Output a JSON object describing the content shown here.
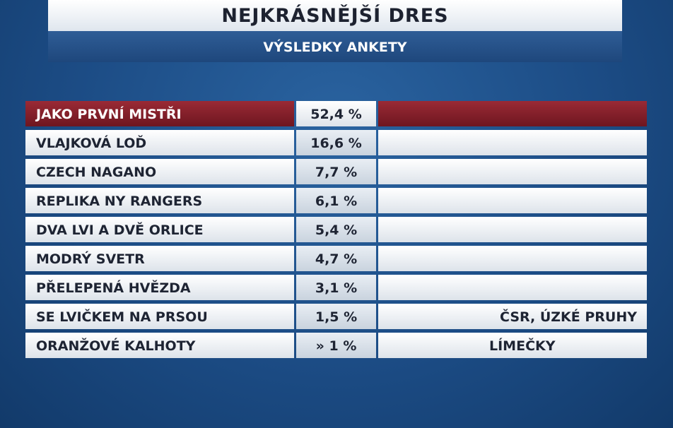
{
  "header": {
    "title": "NEJKRÁSNĚJŠÍ DRES",
    "subtitle": "VÝSLEDKY ANKETY"
  },
  "table": {
    "rows": [
      {
        "name": "JAKO PRVNÍ MISTŘI",
        "share": "52,4 %"
      },
      {
        "name": "VLAJKOVÁ LOĎ",
        "share": "16,6 %"
      },
      {
        "name": "CZECH NAGANO",
        "share": "7,7 %"
      },
      {
        "name": "REPLIKA NY RANGERS",
        "share": "6,1 %"
      },
      {
        "name": "DVA LVI A DVĚ ORLICE",
        "share": "5,4 %"
      },
      {
        "name": "MODRÝ SVETR",
        "share": "4,7 %"
      },
      {
        "name": "PŘELEPENÁ HVĚZDA",
        "share": "3,1 %"
      },
      {
        "name": "SE LVIČKEM NA PRSOU",
        "share": "1,5 %",
        "note": "ČSR, ÚZKÉ PRUHY"
      },
      {
        "name": "ORANŽOVÉ KALHOTY",
        "share": "» 1 %",
        "note": "LÍMEČKY"
      }
    ]
  }
}
